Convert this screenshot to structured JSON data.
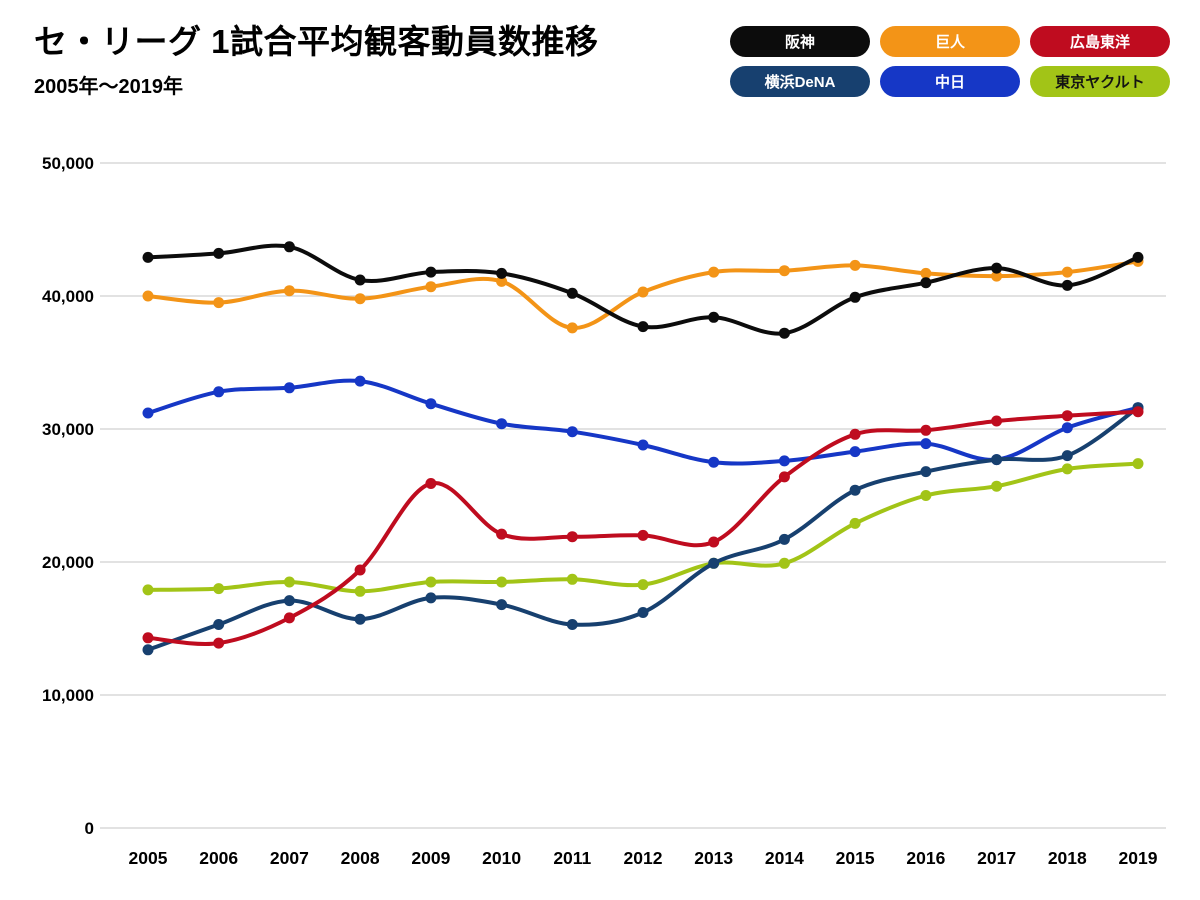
{
  "header": {
    "title": "セ・リーグ 1試合平均観客動員数推移",
    "subtitle": "2005年〜2019年"
  },
  "legend": [
    {
      "label": "阪神",
      "color": "#0c0c0c",
      "text_color": "#ffffff"
    },
    {
      "label": "巨人",
      "color": "#f39417",
      "text_color": "#ffffff"
    },
    {
      "label": "広島東洋",
      "color": "#bf0c1f",
      "text_color": "#ffffff"
    },
    {
      "label": "横浜DeNA",
      "color": "#17406f",
      "text_color": "#ffffff"
    },
    {
      "label": "中日",
      "color": "#1637c6",
      "text_color": "#ffffff"
    },
    {
      "label": "東京ヤクルト",
      "color": "#a2c417",
      "text_color": "#131313"
    }
  ],
  "chart_data": {
    "type": "line",
    "title": "セ・リーグ 1試合平均観客動員数推移",
    "xlabel": "",
    "ylabel": "",
    "x": [
      2005,
      2006,
      2007,
      2008,
      2009,
      2010,
      2011,
      2012,
      2013,
      2014,
      2015,
      2016,
      2017,
      2018,
      2019
    ],
    "ylim": [
      0,
      50000
    ],
    "yticks": [
      0,
      10000,
      20000,
      30000,
      40000,
      50000
    ],
    "grid": true,
    "legend_position": "top-right",
    "series": [
      {
        "name": "阪神",
        "color": "#0c0c0c",
        "values": [
          42900,
          43200,
          43700,
          41200,
          41800,
          41700,
          40200,
          37700,
          38400,
          37200,
          39900,
          41000,
          42100,
          40800,
          42900
        ]
      },
      {
        "name": "巨人",
        "color": "#f39417",
        "values": [
          40000,
          39500,
          40400,
          39800,
          40700,
          41100,
          37600,
          40300,
          41800,
          41900,
          42300,
          41700,
          41500,
          41800,
          42600
        ]
      },
      {
        "name": "広島東洋",
        "color": "#bf0c1f",
        "values": [
          14300,
          13900,
          15800,
          19400,
          25900,
          22100,
          21900,
          22000,
          21500,
          26400,
          29600,
          29900,
          30600,
          31000,
          31300
        ]
      },
      {
        "name": "横浜DeNA",
        "color": "#17406f",
        "values": [
          13400,
          15300,
          17100,
          15700,
          17300,
          16800,
          15300,
          16200,
          19900,
          21700,
          25400,
          26800,
          27700,
          28000,
          31600
        ]
      },
      {
        "name": "中日",
        "color": "#1637c6",
        "values": [
          31200,
          32800,
          33100,
          33600,
          31900,
          30400,
          29800,
          28800,
          27500,
          27600,
          28300,
          28900,
          27700,
          30100,
          31600
        ]
      },
      {
        "name": "東京ヤクルト",
        "color": "#a2c417",
        "values": [
          17900,
          18000,
          18500,
          17800,
          18500,
          18500,
          18700,
          18300,
          19900,
          19900,
          22900,
          25000,
          25700,
          27000,
          27400
        ]
      }
    ]
  }
}
